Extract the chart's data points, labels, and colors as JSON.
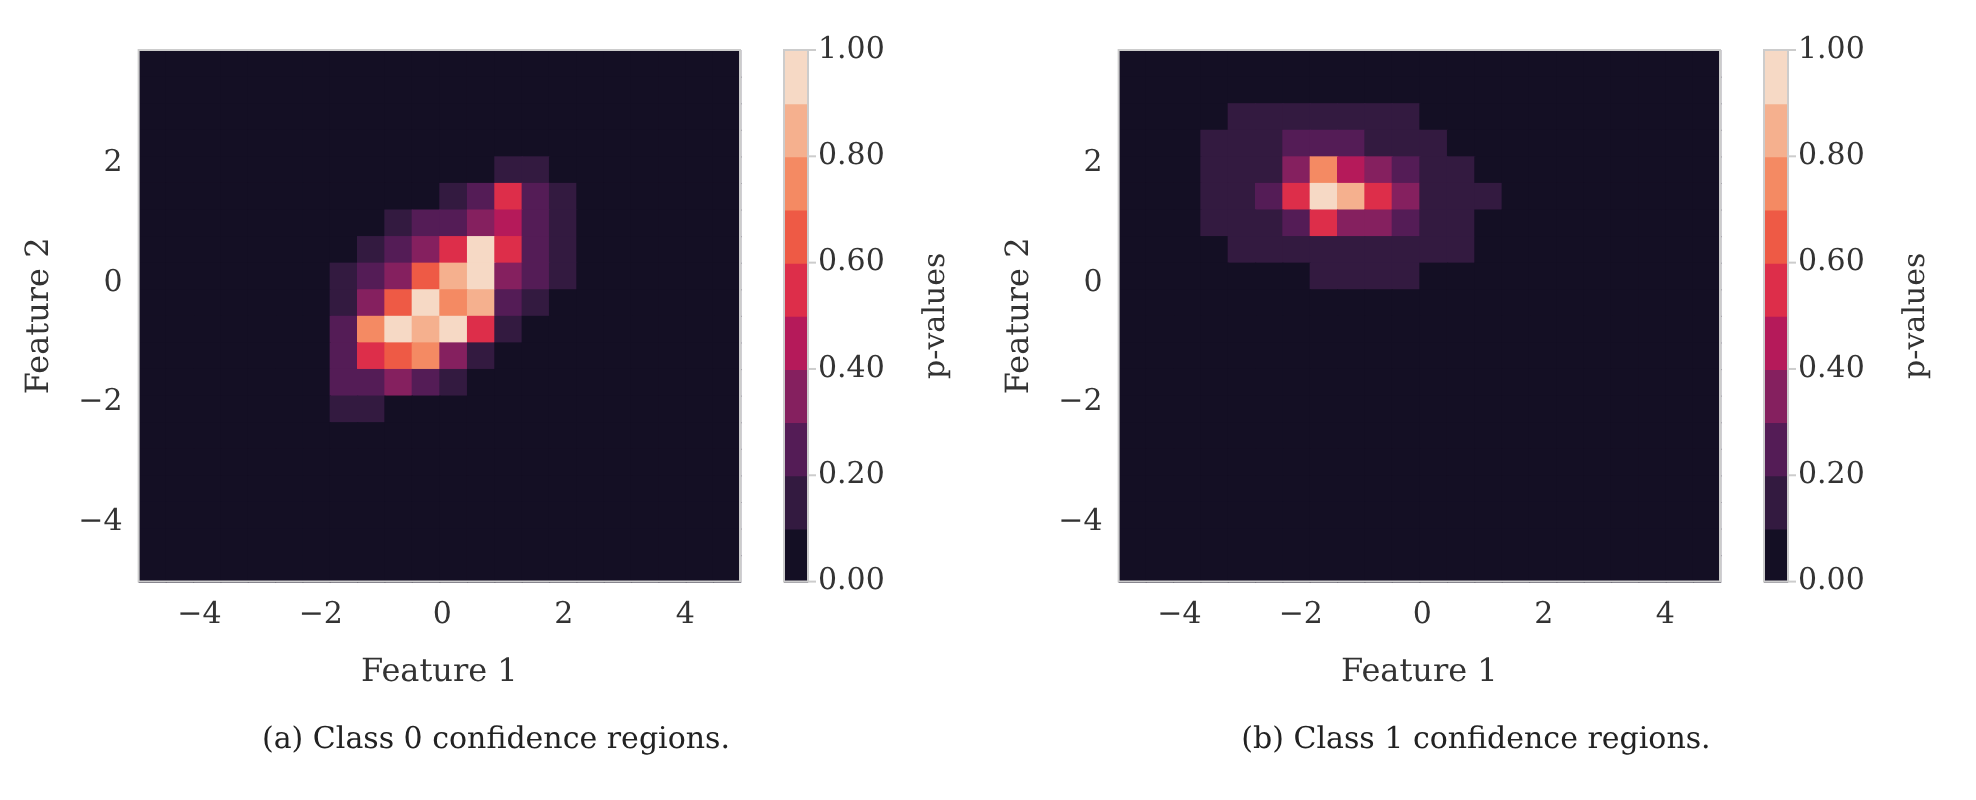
{
  "chart_data": [
    {
      "type": "heatmap",
      "xlabel": "Feature 1",
      "ylabel": "Feature 2",
      "clabel": "p-values",
      "annotations": [
        "(a) Class 0 confidence regions."
      ],
      "x": [
        -4.78,
        -4.33,
        -3.88,
        -3.43,
        -2.98,
        -2.53,
        -2.08,
        -1.63,
        -1.18,
        -0.73,
        -0.28,
        0.18,
        0.63,
        1.08,
        1.53,
        1.98,
        2.43,
        2.88,
        3.33,
        3.78,
        4.23,
        4.68
      ],
      "y": [
        3.68,
        3.23,
        2.79,
        2.34,
        1.9,
        1.45,
        1.01,
        0.56,
        0.12,
        -0.33,
        -0.77,
        -1.22,
        -1.66,
        -2.11,
        -2.55,
        -3.0,
        -3.44,
        -3.89,
        -4.33,
        -4.78
      ],
      "xlim": [
        -5,
        4.9
      ],
      "ylim": [
        -5,
        3.9
      ],
      "xticks": [
        -4,
        -2,
        0,
        2,
        4
      ],
      "yticks": [
        -4,
        -2,
        0,
        2
      ],
      "clim": [
        0,
        1
      ],
      "cticks": [
        {
          "value": 0,
          "label": "0.00"
        },
        {
          "value": 0.2,
          "label": "0.20"
        },
        {
          "value": 0.4,
          "label": "0.40"
        },
        {
          "value": 0.6,
          "label": "0.60"
        },
        {
          "value": 0.8,
          "label": "0.80"
        },
        {
          "value": 1,
          "label": "1.00"
        }
      ],
      "colors": [
        "#140f24",
        "#331a40",
        "#541c56",
        "#85205f",
        "#b51a5a",
        "#dd2e4a",
        "#ee5a45",
        "#f48a63",
        "#f5b08e",
        "#f6d9c5"
      ],
      "cells": [
        [
          0.05,
          0.05,
          0.05,
          0.05,
          0.05,
          0.05,
          0.05,
          0.05,
          0.05,
          0.05,
          0.05,
          0.05,
          0.05,
          0.05,
          0.05,
          0.05,
          0.05,
          0.05,
          0.05,
          0.05,
          0.05,
          0.05
        ],
        [
          0.05,
          0.05,
          0.05,
          0.05,
          0.05,
          0.05,
          0.05,
          0.05,
          0.05,
          0.05,
          0.05,
          0.05,
          0.05,
          0.05,
          0.05,
          0.05,
          0.05,
          0.05,
          0.05,
          0.05,
          0.05,
          0.05
        ],
        [
          0.05,
          0.05,
          0.05,
          0.05,
          0.05,
          0.05,
          0.05,
          0.05,
          0.05,
          0.05,
          0.05,
          0.05,
          0.05,
          0.05,
          0.05,
          0.05,
          0.05,
          0.05,
          0.05,
          0.05,
          0.05,
          0.05
        ],
        [
          0.05,
          0.05,
          0.05,
          0.05,
          0.05,
          0.05,
          0.05,
          0.05,
          0.05,
          0.05,
          0.05,
          0.05,
          0.05,
          0.05,
          0.05,
          0.05,
          0.05,
          0.05,
          0.05,
          0.05,
          0.05,
          0.05
        ],
        [
          0.05,
          0.05,
          0.05,
          0.05,
          0.05,
          0.05,
          0.05,
          0.05,
          0.05,
          0.05,
          0.05,
          0.05,
          0.05,
          0.15,
          0.15,
          0.05,
          0.05,
          0.05,
          0.05,
          0.05,
          0.05,
          0.05
        ],
        [
          0.05,
          0.05,
          0.05,
          0.05,
          0.05,
          0.05,
          0.05,
          0.05,
          0.05,
          0.05,
          0.05,
          0.15,
          0.25,
          0.55,
          0.25,
          0.15,
          0.05,
          0.05,
          0.05,
          0.05,
          0.05,
          0.05
        ],
        [
          0.05,
          0.05,
          0.05,
          0.05,
          0.05,
          0.05,
          0.05,
          0.05,
          0.05,
          0.15,
          0.25,
          0.25,
          0.35,
          0.45,
          0.25,
          0.15,
          0.05,
          0.05,
          0.05,
          0.05,
          0.05,
          0.05
        ],
        [
          0.05,
          0.05,
          0.05,
          0.05,
          0.05,
          0.05,
          0.05,
          0.05,
          0.15,
          0.25,
          0.35,
          0.55,
          0.95,
          0.55,
          0.25,
          0.15,
          0.05,
          0.05,
          0.05,
          0.05,
          0.05,
          0.05
        ],
        [
          0.05,
          0.05,
          0.05,
          0.05,
          0.05,
          0.05,
          0.05,
          0.15,
          0.25,
          0.35,
          0.65,
          0.85,
          0.95,
          0.35,
          0.25,
          0.15,
          0.05,
          0.05,
          0.05,
          0.05,
          0.05,
          0.05
        ],
        [
          0.05,
          0.05,
          0.05,
          0.05,
          0.05,
          0.05,
          0.05,
          0.15,
          0.35,
          0.65,
          0.95,
          0.75,
          0.85,
          0.25,
          0.15,
          0.05,
          0.05,
          0.05,
          0.05,
          0.05,
          0.05,
          0.05
        ],
        [
          0.05,
          0.05,
          0.05,
          0.05,
          0.05,
          0.05,
          0.05,
          0.25,
          0.75,
          0.95,
          0.85,
          0.95,
          0.55,
          0.15,
          0.05,
          0.05,
          0.05,
          0.05,
          0.05,
          0.05,
          0.05,
          0.05
        ],
        [
          0.05,
          0.05,
          0.05,
          0.05,
          0.05,
          0.05,
          0.05,
          0.25,
          0.55,
          0.65,
          0.75,
          0.35,
          0.15,
          0.05,
          0.05,
          0.05,
          0.05,
          0.05,
          0.05,
          0.05,
          0.05,
          0.05
        ],
        [
          0.05,
          0.05,
          0.05,
          0.05,
          0.05,
          0.05,
          0.05,
          0.25,
          0.25,
          0.35,
          0.25,
          0.15,
          0.05,
          0.05,
          0.05,
          0.05,
          0.05,
          0.05,
          0.05,
          0.05,
          0.05,
          0.05
        ],
        [
          0.05,
          0.05,
          0.05,
          0.05,
          0.05,
          0.05,
          0.05,
          0.15,
          0.15,
          0.05,
          0.05,
          0.05,
          0.05,
          0.05,
          0.05,
          0.05,
          0.05,
          0.05,
          0.05,
          0.05,
          0.05,
          0.05
        ],
        [
          0.05,
          0.05,
          0.05,
          0.05,
          0.05,
          0.05,
          0.05,
          0.05,
          0.05,
          0.05,
          0.05,
          0.05,
          0.05,
          0.05,
          0.05,
          0.05,
          0.05,
          0.05,
          0.05,
          0.05,
          0.05,
          0.05
        ],
        [
          0.05,
          0.05,
          0.05,
          0.05,
          0.05,
          0.05,
          0.05,
          0.05,
          0.05,
          0.05,
          0.05,
          0.05,
          0.05,
          0.05,
          0.05,
          0.05,
          0.05,
          0.05,
          0.05,
          0.05,
          0.05,
          0.05
        ],
        [
          0.05,
          0.05,
          0.05,
          0.05,
          0.05,
          0.05,
          0.05,
          0.05,
          0.05,
          0.05,
          0.05,
          0.05,
          0.05,
          0.05,
          0.05,
          0.05,
          0.05,
          0.05,
          0.05,
          0.05,
          0.05,
          0.05
        ],
        [
          0.05,
          0.05,
          0.05,
          0.05,
          0.05,
          0.05,
          0.05,
          0.05,
          0.05,
          0.05,
          0.05,
          0.05,
          0.05,
          0.05,
          0.05,
          0.05,
          0.05,
          0.05,
          0.05,
          0.05,
          0.05,
          0.05
        ],
        [
          0.05,
          0.05,
          0.05,
          0.05,
          0.05,
          0.05,
          0.05,
          0.05,
          0.05,
          0.05,
          0.05,
          0.05,
          0.05,
          0.05,
          0.05,
          0.05,
          0.05,
          0.05,
          0.05,
          0.05,
          0.05,
          0.05
        ],
        [
          0.05,
          0.05,
          0.05,
          0.05,
          0.05,
          0.05,
          0.05,
          0.05,
          0.05,
          0.05,
          0.05,
          0.05,
          0.05,
          0.05,
          0.05,
          0.05,
          0.05,
          0.05,
          0.05,
          0.05,
          0.05,
          0.05
        ]
      ]
    },
    {
      "type": "heatmap",
      "xlabel": "Feature 1",
      "ylabel": "Feature 2",
      "clabel": "p-values",
      "annotations": [
        "(b) Class 1 confidence regions."
      ],
      "x": [
        -4.78,
        -4.33,
        -3.88,
        -3.43,
        -2.98,
        -2.53,
        -2.08,
        -1.63,
        -1.18,
        -0.73,
        -0.28,
        0.18,
        0.63,
        1.08,
        1.53,
        1.98,
        2.43,
        2.88,
        3.33,
        3.78,
        4.23,
        4.68
      ],
      "y": [
        3.68,
        3.23,
        2.79,
        2.34,
        1.9,
        1.45,
        1.01,
        0.56,
        0.12,
        -0.33,
        -0.77,
        -1.22,
        -1.66,
        -2.11,
        -2.55,
        -3.0,
        -3.44,
        -3.89,
        -4.33,
        -4.78
      ],
      "xlim": [
        -5,
        4.9
      ],
      "ylim": [
        -5,
        3.9
      ],
      "xticks": [
        -4,
        -2,
        0,
        2,
        4
      ],
      "yticks": [
        -4,
        -2,
        0,
        2
      ],
      "clim": [
        0,
        1
      ],
      "cticks": [
        {
          "value": 0,
          "label": "0.00"
        },
        {
          "value": 0.2,
          "label": "0.20"
        },
        {
          "value": 0.4,
          "label": "0.40"
        },
        {
          "value": 0.6,
          "label": "0.60"
        },
        {
          "value": 0.8,
          "label": "0.80"
        },
        {
          "value": 1,
          "label": "1.00"
        }
      ],
      "colors": [
        "#140f24",
        "#331a40",
        "#541c56",
        "#85205f",
        "#b51a5a",
        "#dd2e4a",
        "#ee5a45",
        "#f48a63",
        "#f5b08e",
        "#f6d9c5"
      ],
      "cells": [
        [
          0.05,
          0.05,
          0.05,
          0.05,
          0.05,
          0.05,
          0.05,
          0.05,
          0.05,
          0.05,
          0.05,
          0.05,
          0.05,
          0.05,
          0.05,
          0.05,
          0.05,
          0.05,
          0.05,
          0.05,
          0.05,
          0.05
        ],
        [
          0.05,
          0.05,
          0.05,
          0.05,
          0.05,
          0.05,
          0.05,
          0.05,
          0.05,
          0.05,
          0.05,
          0.05,
          0.05,
          0.05,
          0.05,
          0.05,
          0.05,
          0.05,
          0.05,
          0.05,
          0.05,
          0.05
        ],
        [
          0.05,
          0.05,
          0.05,
          0.05,
          0.15,
          0.15,
          0.15,
          0.15,
          0.15,
          0.15,
          0.15,
          0.05,
          0.05,
          0.05,
          0.05,
          0.05,
          0.05,
          0.05,
          0.05,
          0.05,
          0.05,
          0.05
        ],
        [
          0.05,
          0.05,
          0.05,
          0.15,
          0.15,
          0.15,
          0.25,
          0.25,
          0.25,
          0.15,
          0.15,
          0.15,
          0.05,
          0.05,
          0.05,
          0.05,
          0.05,
          0.05,
          0.05,
          0.05,
          0.05,
          0.05
        ],
        [
          0.05,
          0.05,
          0.05,
          0.15,
          0.15,
          0.15,
          0.35,
          0.75,
          0.45,
          0.35,
          0.25,
          0.15,
          0.15,
          0.05,
          0.05,
          0.05,
          0.05,
          0.05,
          0.05,
          0.05,
          0.05,
          0.05
        ],
        [
          0.05,
          0.05,
          0.05,
          0.15,
          0.15,
          0.25,
          0.55,
          0.95,
          0.85,
          0.55,
          0.35,
          0.15,
          0.15,
          0.15,
          0.05,
          0.05,
          0.05,
          0.05,
          0.05,
          0.05,
          0.05,
          0.05
        ],
        [
          0.05,
          0.05,
          0.05,
          0.15,
          0.15,
          0.15,
          0.25,
          0.55,
          0.35,
          0.35,
          0.25,
          0.15,
          0.15,
          0.05,
          0.05,
          0.05,
          0.05,
          0.05,
          0.05,
          0.05,
          0.05,
          0.05
        ],
        [
          0.05,
          0.05,
          0.05,
          0.05,
          0.15,
          0.15,
          0.15,
          0.15,
          0.15,
          0.15,
          0.15,
          0.15,
          0.15,
          0.05,
          0.05,
          0.05,
          0.05,
          0.05,
          0.05,
          0.05,
          0.05,
          0.05
        ],
        [
          0.05,
          0.05,
          0.05,
          0.05,
          0.05,
          0.05,
          0.05,
          0.15,
          0.15,
          0.15,
          0.15,
          0.05,
          0.05,
          0.05,
          0.05,
          0.05,
          0.05,
          0.05,
          0.05,
          0.05,
          0.05,
          0.05
        ],
        [
          0.05,
          0.05,
          0.05,
          0.05,
          0.05,
          0.05,
          0.05,
          0.05,
          0.05,
          0.05,
          0.05,
          0.05,
          0.05,
          0.05,
          0.05,
          0.05,
          0.05,
          0.05,
          0.05,
          0.05,
          0.05,
          0.05
        ],
        [
          0.05,
          0.05,
          0.05,
          0.05,
          0.05,
          0.05,
          0.05,
          0.05,
          0.05,
          0.05,
          0.05,
          0.05,
          0.05,
          0.05,
          0.05,
          0.05,
          0.05,
          0.05,
          0.05,
          0.05,
          0.05,
          0.05
        ],
        [
          0.05,
          0.05,
          0.05,
          0.05,
          0.05,
          0.05,
          0.05,
          0.05,
          0.05,
          0.05,
          0.05,
          0.05,
          0.05,
          0.05,
          0.05,
          0.05,
          0.05,
          0.05,
          0.05,
          0.05,
          0.05,
          0.05
        ],
        [
          0.05,
          0.05,
          0.05,
          0.05,
          0.05,
          0.05,
          0.05,
          0.05,
          0.05,
          0.05,
          0.05,
          0.05,
          0.05,
          0.05,
          0.05,
          0.05,
          0.05,
          0.05,
          0.05,
          0.05,
          0.05,
          0.05
        ],
        [
          0.05,
          0.05,
          0.05,
          0.05,
          0.05,
          0.05,
          0.05,
          0.05,
          0.05,
          0.05,
          0.05,
          0.05,
          0.05,
          0.05,
          0.05,
          0.05,
          0.05,
          0.05,
          0.05,
          0.05,
          0.05,
          0.05
        ],
        [
          0.05,
          0.05,
          0.05,
          0.05,
          0.05,
          0.05,
          0.05,
          0.05,
          0.05,
          0.05,
          0.05,
          0.05,
          0.05,
          0.05,
          0.05,
          0.05,
          0.05,
          0.05,
          0.05,
          0.05,
          0.05,
          0.05
        ],
        [
          0.05,
          0.05,
          0.05,
          0.05,
          0.05,
          0.05,
          0.05,
          0.05,
          0.05,
          0.05,
          0.05,
          0.05,
          0.05,
          0.05,
          0.05,
          0.05,
          0.05,
          0.05,
          0.05,
          0.05,
          0.05,
          0.05
        ],
        [
          0.05,
          0.05,
          0.05,
          0.05,
          0.05,
          0.05,
          0.05,
          0.05,
          0.05,
          0.05,
          0.05,
          0.05,
          0.05,
          0.05,
          0.05,
          0.05,
          0.05,
          0.05,
          0.05,
          0.05,
          0.05,
          0.05
        ],
        [
          0.05,
          0.05,
          0.05,
          0.05,
          0.05,
          0.05,
          0.05,
          0.05,
          0.05,
          0.05,
          0.05,
          0.05,
          0.05,
          0.05,
          0.05,
          0.05,
          0.05,
          0.05,
          0.05,
          0.05,
          0.05,
          0.05
        ],
        [
          0.05,
          0.05,
          0.05,
          0.05,
          0.05,
          0.05,
          0.05,
          0.05,
          0.05,
          0.05,
          0.05,
          0.05,
          0.05,
          0.05,
          0.05,
          0.05,
          0.05,
          0.05,
          0.05,
          0.05,
          0.05,
          0.05
        ],
        [
          0.05,
          0.05,
          0.05,
          0.05,
          0.05,
          0.05,
          0.05,
          0.05,
          0.05,
          0.05,
          0.05,
          0.05,
          0.05,
          0.05,
          0.05,
          0.05,
          0.05,
          0.05,
          0.05,
          0.05,
          0.05,
          0.05
        ]
      ]
    }
  ]
}
